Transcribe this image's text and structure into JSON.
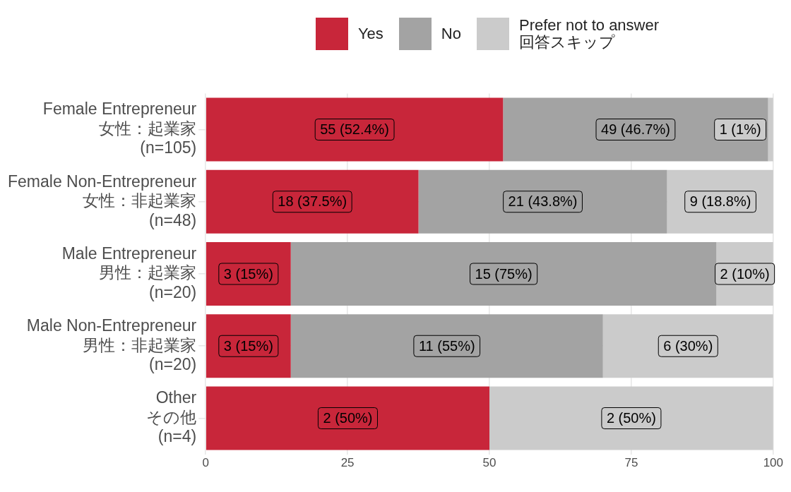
{
  "chart_data": {
    "type": "bar",
    "orientation": "horizontal",
    "stacked": true,
    "categories": [
      "Female Entrepreneur\n女性：起業家\n(n=105)",
      "Female Non-Entrepreneur\n女性：非起業家\n(n=48)",
      "Male Entrepreneur\n男性：起業家\n(n=20)",
      "Male Non-Entrepreneur\n男性：非起業家\n(n=20)",
      "Other\nその他\n(n=4)"
    ],
    "series": [
      {
        "name": "Yes",
        "color": "#c8263a",
        "values": [
          52.4,
          37.5,
          15,
          15,
          50
        ],
        "value_labels": [
          "55 (52.4%)",
          "18 (37.5%)",
          "3 (15%)",
          "3 (15%)",
          "2 (50%)"
        ]
      },
      {
        "name": "No",
        "color": "#a3a3a3",
        "values": [
          46.7,
          43.8,
          75,
          55,
          null
        ],
        "value_labels": [
          "49 (46.7%)",
          "21 (43.8%)",
          "15 (75%)",
          "11 (55%)",
          null
        ]
      },
      {
        "name": "Prefer not to answer\n回答スキップ",
        "color": "#cbcbcb",
        "values": [
          0.9,
          18.8,
          10,
          30,
          50
        ],
        "value_labels": [
          "1 (1%)",
          "9 (18.8%)",
          "2 (10%)",
          "6 (30%)",
          "2 (50%)"
        ]
      }
    ],
    "xlim": [
      0,
      100
    ],
    "xticks": [
      0,
      25,
      50,
      75,
      100
    ],
    "grid": true,
    "legend": "top"
  }
}
